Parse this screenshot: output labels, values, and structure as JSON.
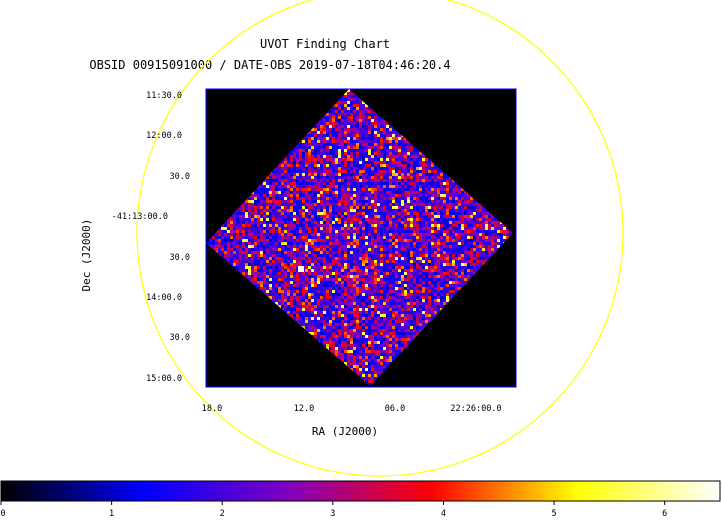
{
  "chart_data": {
    "type": "heatmap",
    "title": "UVOT Finding Chart",
    "subtitle": "OBSID 00915091000 / DATE-OBS 2019-07-18T04:46:20.4",
    "xlabel": "RA (J2000)",
    "ylabel": "Dec (J2000)",
    "x_ticks": [
      "18.0",
      "12.0",
      "06.0",
      "22:26:00.0"
    ],
    "y_ticks": [
      "11:30.0",
      "12:00.0",
      "30.0",
      "-41:13:00.0",
      "30.0",
      "14:00.0",
      "30.0",
      "15:00.0"
    ],
    "colorbar": {
      "ticks": [
        "0",
        "1",
        "2",
        "3",
        "4",
        "5",
        "6"
      ],
      "range": [
        0,
        6.5
      ],
      "colors": [
        "#000000",
        "#0000ff",
        "#8000c0",
        "#ff0000",
        "#ffff00",
        "#ffffff"
      ]
    },
    "annotations": [
      {
        "shape": "circle",
        "color": "#ffff00"
      }
    ],
    "frame_color": "#0000ff",
    "background": "#000000",
    "noise_range": [
      1,
      6
    ],
    "bright_source_value": 6.4,
    "grid": false
  }
}
